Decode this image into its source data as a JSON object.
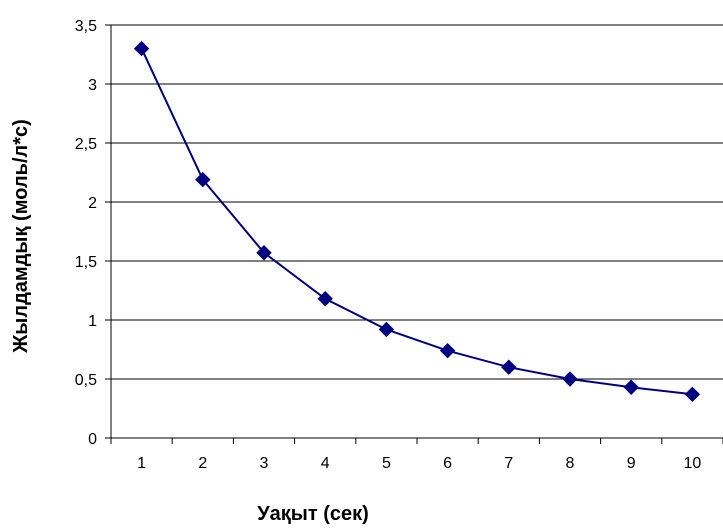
{
  "chart_data": {
    "type": "line",
    "title": "",
    "xlabel": "Уақыт (сек)",
    "ylabel": "Жылдамдық (моль/л*с)",
    "categories": [
      "1",
      "2",
      "3",
      "4",
      "5",
      "6",
      "7",
      "8",
      "9",
      "10"
    ],
    "y_ticks": [
      "0",
      "0,5",
      "1",
      "1,5",
      "2",
      "2,5",
      "3",
      "3,5"
    ],
    "ylim": [
      0,
      3.5
    ],
    "grid": true,
    "legend": "none",
    "series": [
      {
        "color": "#000080",
        "marker": "diamond",
        "values": [
          3.3,
          2.19,
          1.57,
          1.18,
          0.92,
          0.74,
          0.6,
          0.5,
          0.43,
          0.37
        ]
      }
    ]
  }
}
